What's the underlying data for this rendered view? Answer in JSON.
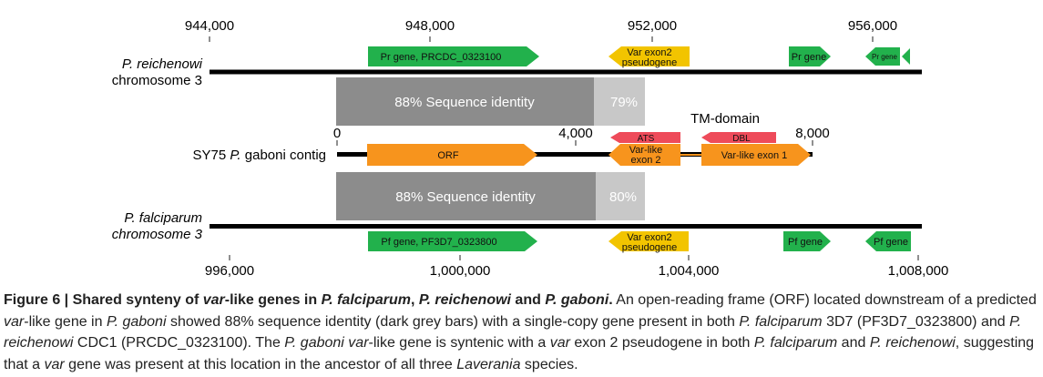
{
  "figure": {
    "top_axis": {
      "ticks": [
        "944,000",
        "948,000",
        "952,000",
        "956,000"
      ]
    },
    "bottom_axis": {
      "ticks": [
        "996,000",
        "1,000,000",
        "1,004,000",
        "1,008,000"
      ]
    },
    "middle_axis": {
      "ticks": [
        "0",
        "4,000",
        "8,000"
      ]
    },
    "tracks": {
      "reichenowi": {
        "species": "P. reichenowi",
        "chromosome": "chromosome 3"
      },
      "gaboni": {
        "prefix": "SY75 ",
        "species": "P.",
        "suffix": " gaboni contig"
      },
      "falciparum": {
        "species": "P. falciparum",
        "chromosome": "chromosome 3"
      }
    },
    "identity_blocks": {
      "upper": {
        "main_label": "88% Sequence identity",
        "main_value": 88,
        "side_label": "79%",
        "side_value": 79
      },
      "lower": {
        "main_label": "88% Sequence identity",
        "main_value": 88,
        "side_label": "80%",
        "side_value": 80
      }
    },
    "tm_domain_label": "TM-domain",
    "genes": {
      "pr_gene_main": "Pr gene, PRCDC_0323100",
      "pr_var_line1": "Var exon2",
      "pr_var_line2": "pseudogene",
      "pr_gene_small1": "Pr gene",
      "pr_gene_small2": "Pr gene",
      "gab_orf": "ORF",
      "gab_ats": "ATS",
      "gab_var_line1": "Var-like",
      "gab_var_line2": "exon 2",
      "gab_tm": "",
      "gab_dbl": "DBL",
      "gab_exon1": "Var-like exon 1",
      "pf_gene_main": "Pf gene, PF3D7_0323800",
      "pf_var_line1": "Var exon2",
      "pf_var_line2": "pseudogene",
      "pf_gene_small1": "Pf gene",
      "pf_gene_small2": "Pf gene"
    },
    "colors": {
      "green": "#22b14c",
      "yellow": "#f2c400",
      "orange": "#f7941d",
      "red": "#ee4b5a",
      "dark_grey": "#8c8c8c",
      "light_grey": "#c8c8c8"
    }
  },
  "caption": {
    "fig_label": "Figure 6 | Shared synteny of ",
    "t_var1": "var",
    "t_2": "-like genes in ",
    "t_pfal": "P. falciparum",
    "t_3": ", ",
    "t_prei": "P. reichenowi",
    "t_4": " and ",
    "t_pgab": "P. gaboni",
    "t_5": ".",
    "s1": " An open-reading frame (ORF) located downstream of a predicted ",
    "s1_var": "var",
    "s2": "-like gene in ",
    "s2_pg": "P. gaboni",
    "s3": " showed 88% sequence identity (dark grey bars) with a single-copy gene present in both ",
    "s3_pf": "P. falciparum",
    "s4": " 3D7 (PF3D7_0323800) and ",
    "s4_pr": "P. reichenowi",
    "s5": " CDC1 (PRCDC_0323100). The ",
    "s5_pg": "P. gaboni var",
    "s6": "-like gene is syntenic with a ",
    "s6_var": "var",
    "s7": " exon 2 pseudogene in both ",
    "s7_pf": "P. falciparum",
    "s8": " and ",
    "s8_pr": "P. reichenowi",
    "s9": ", suggesting that a ",
    "s9_var": "var",
    "s10": " gene was present at this location in the ancestor of all three ",
    "s10_lav": "Laverania",
    "s11": " species."
  }
}
